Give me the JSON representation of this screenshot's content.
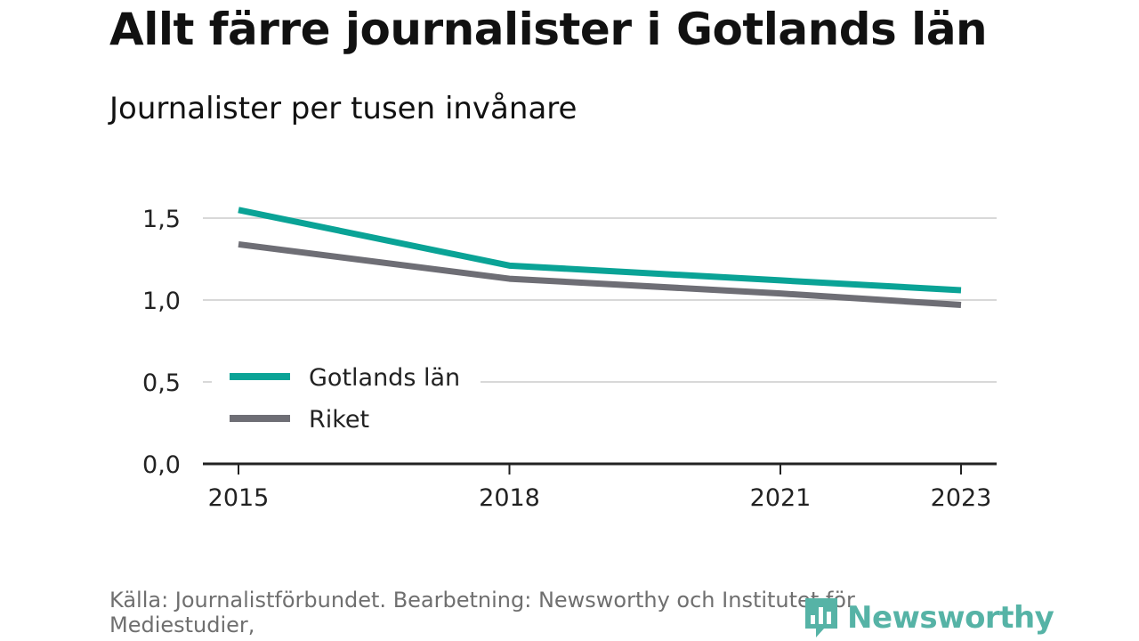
{
  "header": {
    "title": "Allt färre journalister i Gotlands län",
    "subtitle": "Journalister per tusen invånare"
  },
  "footer": {
    "source": "Källa: Journalistförbundet. Bearbetning: Newsworthy och Institutet för Mediestudier,",
    "logo_text": "Newsworthy",
    "logo_icon": "bar-chart-badge-icon"
  },
  "chart_data": {
    "type": "line",
    "x": [
      2015,
      2018,
      2021,
      2023
    ],
    "x_ticks": [
      "2015",
      "2018",
      "2021",
      "2023"
    ],
    "y_ticks": [
      {
        "value": 0.0,
        "label": "0,0"
      },
      {
        "value": 0.5,
        "label": "0,5"
      },
      {
        "value": 1.0,
        "label": "1,0"
      },
      {
        "value": 1.5,
        "label": "1,5"
      }
    ],
    "ylim": [
      0,
      1.5
    ],
    "grid": true,
    "legend_position": "lower-left",
    "series": [
      {
        "name": "Gotlands län",
        "color": "#0aa396",
        "values": [
          1.55,
          1.21,
          1.12,
          1.06
        ]
      },
      {
        "name": "Riket",
        "color": "#6e6e75",
        "values": [
          1.34,
          1.13,
          1.04,
          0.97
        ]
      }
    ],
    "title": "Allt färre journalister i Gotlands län",
    "subtitle": "Journalister per tusen invånare"
  }
}
